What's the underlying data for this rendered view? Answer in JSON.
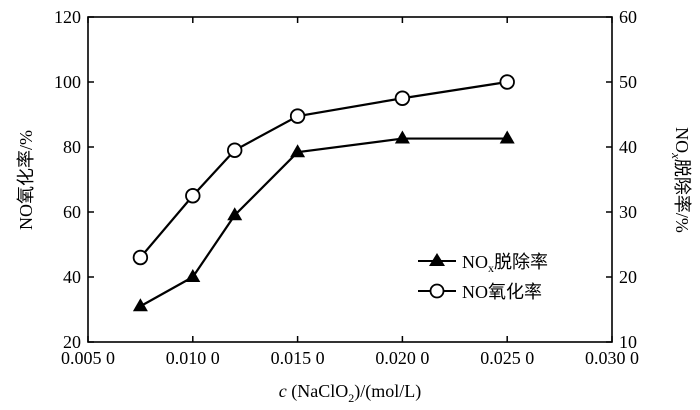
{
  "chart_data": {
    "type": "line",
    "xlabel_parts": {
      "c": "c",
      "open": " (NaClO",
      "sub": "2",
      "close": ")/(mol/L)"
    },
    "ylabel_left": "NO氧化率/%",
    "ylabel_right_parts": {
      "pre": "NO",
      "sub": "x",
      "post": "脱除率/%"
    },
    "xlim": [
      0.005,
      0.03
    ],
    "ylim_left": [
      20,
      120
    ],
    "ylim_right": [
      10,
      60
    ],
    "x_ticks": [
      0.005,
      0.01,
      0.015,
      0.02,
      0.025,
      0.03
    ],
    "x_tick_labels": [
      "0.005 0",
      "0.010 0",
      "0.015 0",
      "0.020 0",
      "0.025 0",
      "0.030 0"
    ],
    "y_left_ticks": [
      20,
      40,
      60,
      80,
      100,
      120
    ],
    "y_left_tick_labels": [
      "20",
      "40",
      "60",
      "80",
      "100",
      "120"
    ],
    "y_right_ticks": [
      10,
      20,
      30,
      40,
      50,
      60
    ],
    "y_right_tick_labels": [
      "10",
      "20",
      "30",
      "40",
      "50",
      "60"
    ],
    "legend_position": "center-right",
    "series": [
      {
        "name": "NOx脱除率",
        "legend_parts": {
          "pre": "NO",
          "sub": "x",
          "post": "脱除率"
        },
        "axis": "right",
        "marker": "filled-triangle",
        "color": "#000000",
        "x": [
          0.0075,
          0.01,
          0.012,
          0.015,
          0.02,
          0.025
        ],
        "values": [
          15.5,
          20.0,
          29.5,
          39.2,
          41.3,
          41.3
        ]
      },
      {
        "name": "NO氧化率",
        "legend_parts": {
          "pre": "NO氧化率",
          "sub": "",
          "post": ""
        },
        "axis": "left",
        "marker": "open-circle",
        "color": "#000000",
        "x": [
          0.0075,
          0.01,
          0.012,
          0.015,
          0.02,
          0.025
        ],
        "values": [
          46,
          65,
          79,
          89.5,
          95,
          100
        ]
      }
    ]
  }
}
